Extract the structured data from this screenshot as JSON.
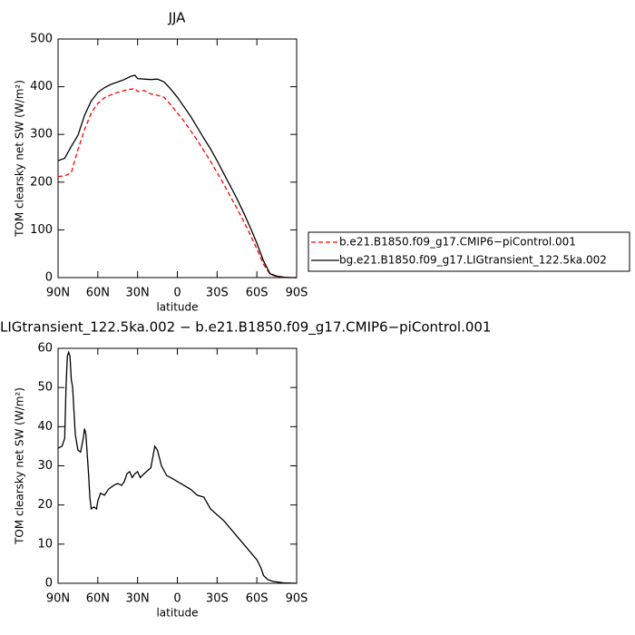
{
  "chart_data": [
    {
      "type": "line",
      "title": "JJA",
      "x_label": "latitude",
      "y_label": "TOM clearsky net SW (W/m²)",
      "x": [
        90,
        85,
        80,
        75,
        70,
        65,
        60,
        55,
        50,
        45,
        40,
        35,
        32,
        30,
        25,
        20,
        15,
        10,
        5,
        0,
        -5,
        -10,
        -15,
        -20,
        -25,
        -30,
        -35,
        -40,
        -45,
        -50,
        -55,
        -60,
        -65,
        -70,
        -75,
        -80,
        -85,
        -90
      ],
      "series": [
        {
          "name": "b.e21.B1850.f09_g17.CMIP6−piControl.001",
          "color": "#ff0000",
          "dash": true,
          "values": [
            212,
            213,
            220,
            268,
            310,
            345,
            365,
            377,
            383,
            388,
            392,
            395,
            396,
            390,
            392,
            385,
            382,
            378,
            362,
            345,
            328,
            308,
            288,
            266,
            244,
            220,
            196,
            170,
            145,
            118,
            90,
            60,
            28,
            7,
            2,
            1,
            0,
            0
          ]
        },
        {
          "name": "bg.e21.B1850.f09_g17.LIGtransient_122.5ka.002",
          "color": "#000000",
          "dash": false,
          "values": [
            245,
            250,
            275,
            298,
            340,
            370,
            388,
            398,
            405,
            410,
            415,
            422,
            424,
            417,
            416,
            415,
            416,
            410,
            395,
            378,
            358,
            338,
            315,
            292,
            270,
            245,
            218,
            192,
            165,
            136,
            105,
            72,
            35,
            8,
            3,
            1,
            0,
            0
          ]
        }
      ],
      "xlim": [
        90,
        -90
      ],
      "xticks": [
        {
          "value": 90,
          "label": "90N"
        },
        {
          "value": 60,
          "label": "60N"
        },
        {
          "value": 30,
          "label": "30N"
        },
        0,
        {
          "value": -30,
          "label": "30S"
        },
        {
          "value": -60,
          "label": "60S"
        },
        {
          "value": -90,
          "label": "90S"
        }
      ],
      "ylim": [
        0,
        500
      ],
      "yticks": [
        0,
        100,
        200,
        300,
        400,
        500
      ],
      "legend": "right"
    },
    {
      "type": "line",
      "title": "LIGtransient_122.5ka.002 − b.e21.B1850.f09_g17.CMIP6−piControl.001",
      "x_label": "latitude",
      "y_label": "TOM clearsky net SW (W/m²)",
      "x": [
        90,
        87,
        85,
        84,
        83,
        82,
        81,
        80,
        79,
        77,
        75,
        73,
        71,
        70,
        69,
        67,
        66,
        65,
        63,
        61,
        60,
        58,
        55,
        52,
        48,
        45,
        42,
        40,
        38,
        36,
        34,
        32,
        30,
        28,
        25,
        20,
        17,
        15,
        12,
        8,
        5,
        0,
        -5,
        -10,
        -15,
        -20,
        -25,
        -30,
        -35,
        -40,
        -45,
        -50,
        -55,
        -60,
        -63,
        -65,
        -68,
        -72,
        -80,
        -90
      ],
      "series": [
        {
          "color": "#000000",
          "dash": false,
          "values": [
            34.5,
            35,
            37,
            50,
            58,
            59,
            58,
            52,
            50,
            38,
            34,
            33.5,
            37,
            39.5,
            38,
            28,
            22,
            19,
            19.5,
            19,
            21,
            23,
            22.5,
            24,
            25,
            25.5,
            25,
            26,
            28,
            28.5,
            27,
            28,
            28.5,
            27,
            28,
            29.5,
            35,
            34,
            30,
            27.5,
            27,
            26,
            25,
            24,
            22.5,
            22,
            19,
            17.5,
            16,
            14,
            12,
            10,
            8,
            6,
            4,
            2,
            1,
            0.5,
            0.1,
            0
          ]
        }
      ],
      "xlim": [
        90,
        -90
      ],
      "xticks": [
        {
          "value": 90,
          "label": "90N"
        },
        {
          "value": 60,
          "label": "60N"
        },
        {
          "value": 30,
          "label": "30N"
        },
        0,
        {
          "value": -30,
          "label": "30S"
        },
        {
          "value": -60,
          "label": "60S"
        },
        {
          "value": -90,
          "label": "90S"
        }
      ],
      "ylim": [
        0,
        60
      ],
      "yticks": [
        0,
        10,
        20,
        30,
        40,
        50,
        60
      ]
    }
  ]
}
